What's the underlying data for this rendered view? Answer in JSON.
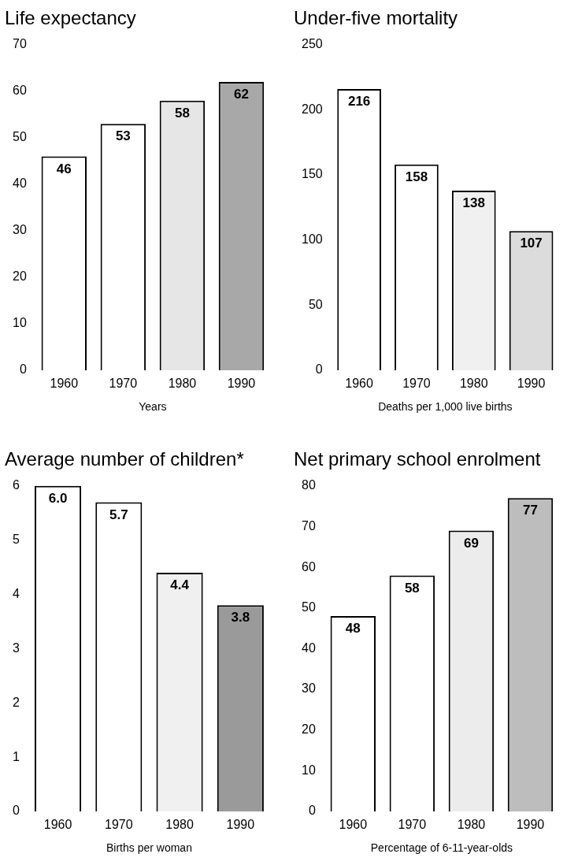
{
  "chart_data": [
    {
      "type": "bar",
      "title": "Life expectancy",
      "xlabel": "Years",
      "categories": [
        "1960",
        "1970",
        "1980",
        "1990"
      ],
      "values": [
        46,
        53,
        58,
        62
      ],
      "colors": [
        "#ffffff",
        "#ffffff",
        "#e6e6e6",
        "#a8a8a8"
      ],
      "ylim": [
        0,
        70
      ],
      "yticks": [
        0,
        10,
        20,
        30,
        40,
        50,
        60,
        70
      ],
      "grid": false,
      "legend": false,
      "data_labels": true
    },
    {
      "type": "bar",
      "title": "Under-five mortality",
      "xlabel": "Deaths per 1,000 live births",
      "categories": [
        "1960",
        "1970",
        "1980",
        "1990"
      ],
      "values": [
        216,
        158,
        138,
        107
      ],
      "colors": [
        "#ffffff",
        "#ffffff",
        "#f0f0f0",
        "#dcdcdc"
      ],
      "ylim": [
        0,
        250
      ],
      "yticks": [
        0,
        50,
        100,
        150,
        200,
        250
      ],
      "grid": false,
      "legend": false,
      "data_labels": true
    },
    {
      "type": "bar",
      "title": "Average number of children*",
      "xlabel": "Births per woman",
      "categories": [
        "1960",
        "1970",
        "1980",
        "1990"
      ],
      "values": [
        6.0,
        5.7,
        4.4,
        3.8
      ],
      "value_labels": [
        "6.0",
        "5.7",
        "4.4",
        "3.8"
      ],
      "colors": [
        "#ffffff",
        "#ffffff",
        "#f0f0f0",
        "#9a9a9a"
      ],
      "ylim": [
        0,
        6
      ],
      "yticks": [
        0,
        1,
        2,
        3,
        4,
        5,
        6
      ],
      "grid": false,
      "legend": false
    },
    {
      "type": "bar",
      "title": "Net primary school enrolment",
      "xlabel": "Percentage of 6-11-year-olds",
      "categories": [
        "1960",
        "1970",
        "1980",
        "1990"
      ],
      "values": [
        48,
        58,
        69,
        77
      ],
      "colors": [
        "#ffffff",
        "#ffffff",
        "#ececec",
        "#bdbdbd"
      ],
      "ylim": [
        0,
        80
      ],
      "yticks": [
        0,
        10,
        20,
        30,
        40,
        50,
        60,
        70,
        80
      ],
      "grid": false,
      "legend": false,
      "data_labels": true
    }
  ]
}
